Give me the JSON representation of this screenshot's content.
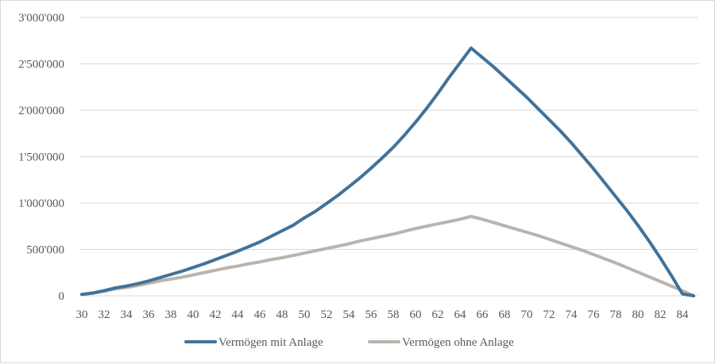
{
  "chart_data": {
    "type": "line",
    "title": "",
    "xlabel": "",
    "ylabel": "",
    "x": [
      30,
      31,
      32,
      33,
      34,
      35,
      36,
      37,
      38,
      39,
      40,
      41,
      42,
      43,
      44,
      45,
      46,
      47,
      48,
      49,
      50,
      51,
      52,
      53,
      54,
      55,
      56,
      57,
      58,
      59,
      60,
      61,
      62,
      63,
      64,
      65,
      66,
      67,
      68,
      69,
      70,
      71,
      72,
      73,
      74,
      75,
      76,
      77,
      78,
      79,
      80,
      81,
      82,
      83,
      84,
      85
    ],
    "x_tick_labels": [
      "30",
      "32",
      "34",
      "36",
      "38",
      "40",
      "42",
      "44",
      "46",
      "48",
      "50",
      "52",
      "54",
      "56",
      "58",
      "60",
      "62",
      "64",
      "66",
      "68",
      "70",
      "72",
      "74",
      "76",
      "78",
      "80",
      "82",
      "84"
    ],
    "ylim": [
      0,
      3000000
    ],
    "y_ticks": [
      0,
      500000,
      1000000,
      1500000,
      2000000,
      2500000,
      3000000
    ],
    "y_tick_labels": [
      "0",
      "500'000",
      "1'000'000",
      "1'500'000",
      "2'000'000",
      "2'500'000",
      "3'000'000"
    ],
    "grid": "horizontal",
    "legend_position": "bottom",
    "series": [
      {
        "name": "Vermögen mit Anlage",
        "color": "#41729a",
        "values": [
          15000,
          30000,
          55000,
          85000,
          105000,
          130000,
          160000,
          195000,
          230000,
          265000,
          305000,
          345000,
          390000,
          435000,
          480000,
          530000,
          580000,
          640000,
          700000,
          760000,
          840000,
          910000,
          995000,
          1080000,
          1175000,
          1270000,
          1375000,
          1485000,
          1600000,
          1730000,
          1870000,
          2020000,
          2180000,
          2350000,
          2510000,
          2670000,
          2570000,
          2470000,
          2360000,
          2250000,
          2140000,
          2020000,
          1900000,
          1780000,
          1650000,
          1510000,
          1370000,
          1220000,
          1070000,
          920000,
          760000,
          590000,
          410000,
          220000,
          20000,
          0
        ]
      },
      {
        "name": "Vermögen ohne Anlage",
        "color": "#b9b4ac",
        "values": [
          15000,
          30000,
          50000,
          75000,
          90000,
          110000,
          135000,
          160000,
          180000,
          200000,
          225000,
          250000,
          275000,
          300000,
          320000,
          345000,
          365000,
          390000,
          410000,
          435000,
          460000,
          485000,
          510000,
          535000,
          560000,
          590000,
          615000,
          640000,
          665000,
          695000,
          725000,
          750000,
          775000,
          800000,
          825000,
          855000,
          825000,
          790000,
          755000,
          720000,
          685000,
          650000,
          610000,
          570000,
          530000,
          490000,
          445000,
          400000,
          355000,
          305000,
          255000,
          205000,
          155000,
          105000,
          55000,
          0
        ]
      }
    ]
  }
}
